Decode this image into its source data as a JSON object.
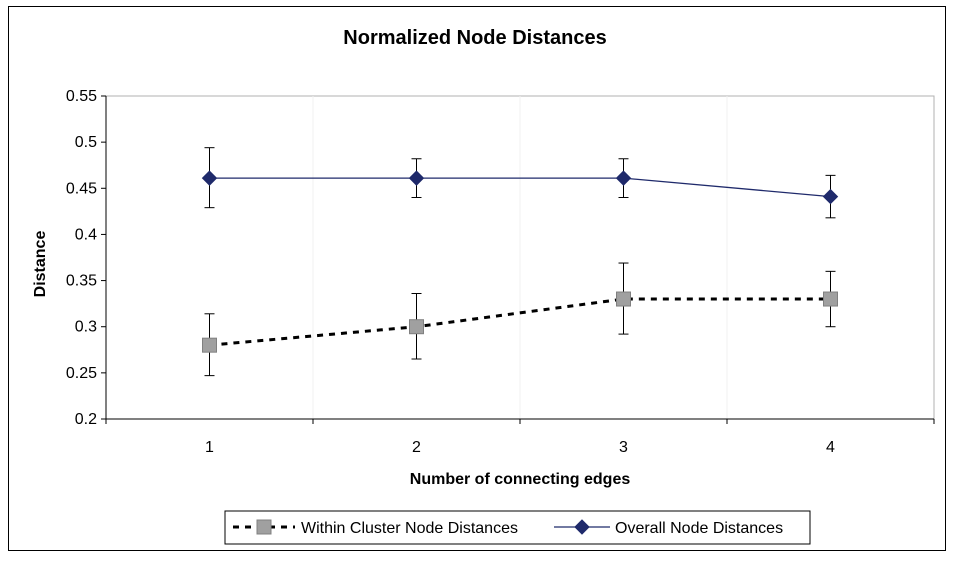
{
  "chart_data": {
    "type": "line",
    "title": "Normalized Node Distances",
    "xlabel": "Number of connecting edges",
    "ylabel": "Distance",
    "categories": [
      "1",
      "2",
      "3",
      "4"
    ],
    "ylim": [
      0.2,
      0.55
    ],
    "yticks": [
      0.2,
      0.25,
      0.3,
      0.35,
      0.4,
      0.45,
      0.5,
      0.55
    ],
    "ytick_labels": [
      "0.2",
      "0.25",
      "0.3",
      "0.35",
      "0.4",
      "0.45",
      "0.5",
      "0.55"
    ],
    "grid": false,
    "legend_position": "bottom",
    "series": [
      {
        "name": "Within Cluster Node Distances",
        "values": [
          0.28,
          0.3,
          0.33,
          0.33
        ],
        "err_low": [
          0.247,
          0.265,
          0.292,
          0.3
        ],
        "err_high": [
          0.314,
          0.336,
          0.369,
          0.36
        ],
        "color": "#000000",
        "marker_color": "#a0a0a0",
        "marker": "square",
        "line_style": "dotted"
      },
      {
        "name": "Overall Node Distances",
        "values": [
          0.461,
          0.461,
          0.461,
          0.441
        ],
        "err_low": [
          0.429,
          0.44,
          0.44,
          0.418
        ],
        "err_high": [
          0.494,
          0.482,
          0.482,
          0.464
        ],
        "color": "#1f2a6b",
        "marker_color": "#1f2a6b",
        "marker": "diamond",
        "line_style": "solid"
      }
    ]
  }
}
